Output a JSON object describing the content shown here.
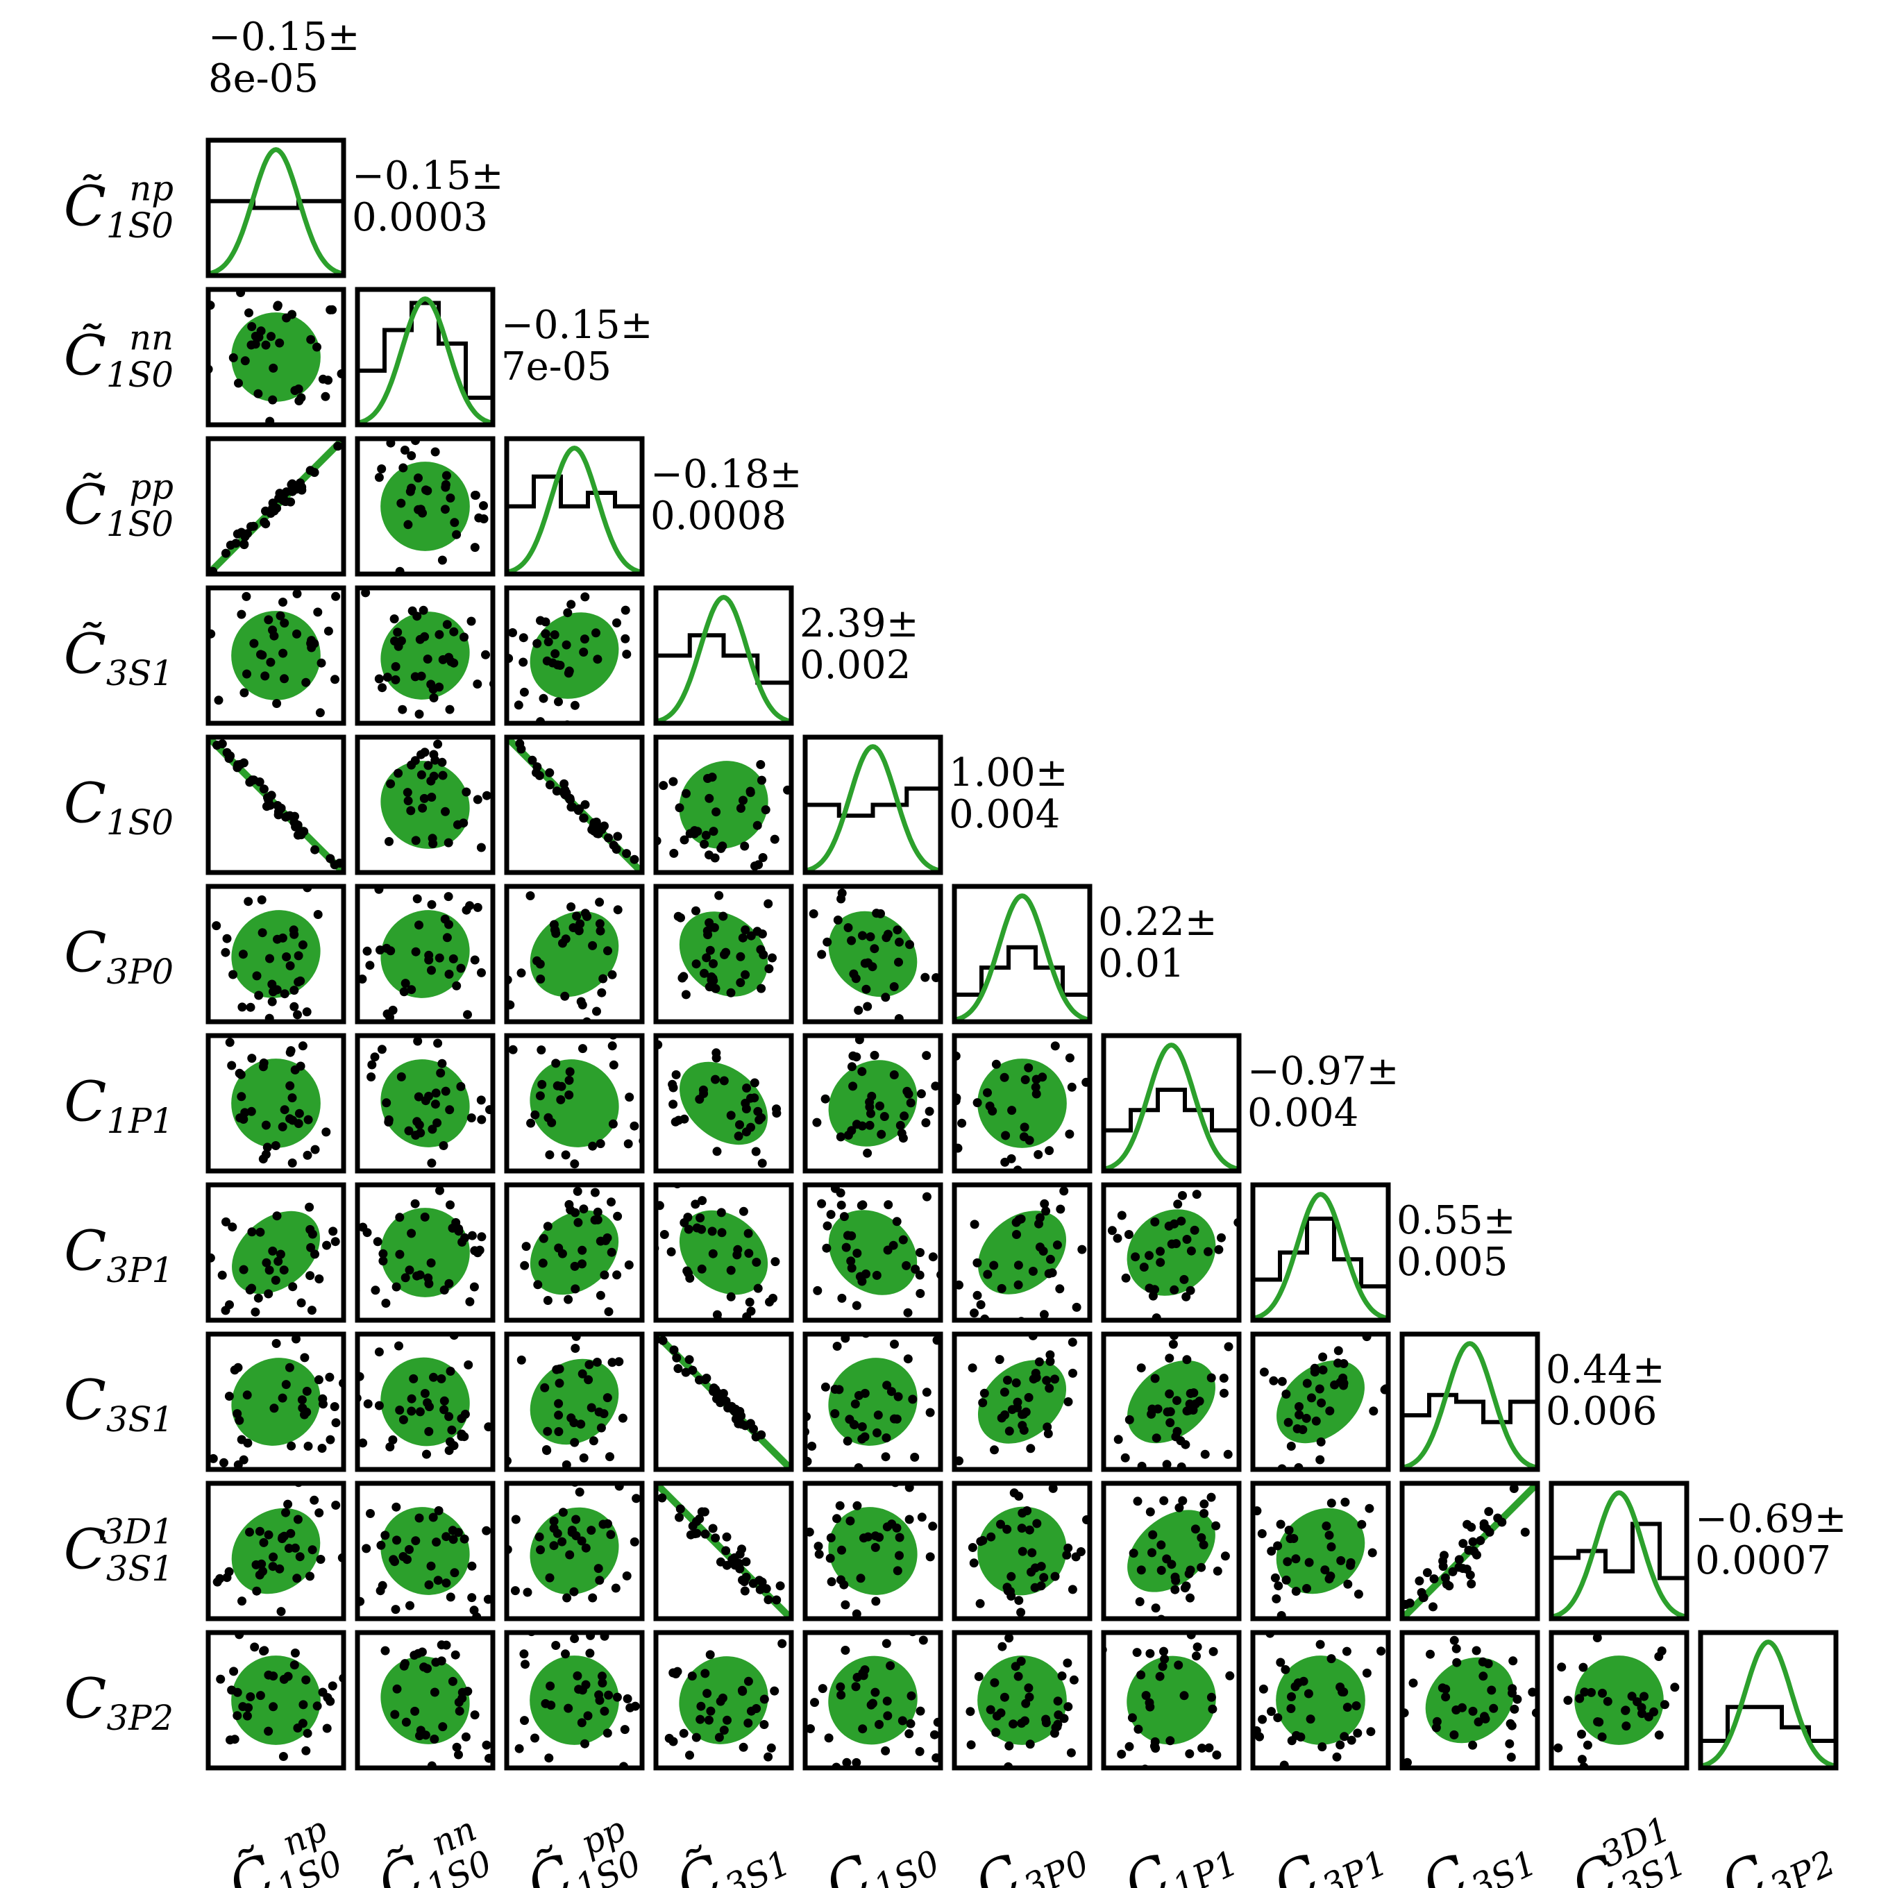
{
  "chart_data": {
    "type": "corner",
    "parameters": [
      {
        "base": "C",
        "tilde": true,
        "sub": "1S0",
        "sup": "np"
      },
      {
        "base": "C",
        "tilde": true,
        "sub": "1S0",
        "sup": "nn"
      },
      {
        "base": "C",
        "tilde": true,
        "sub": "1S0",
        "sup": "pp"
      },
      {
        "base": "C",
        "tilde": true,
        "sub": "3S1",
        "sup": ""
      },
      {
        "base": "C",
        "tilde": false,
        "sub": "1S0",
        "sup": ""
      },
      {
        "base": "C",
        "tilde": false,
        "sub": "3P0",
        "sup": ""
      },
      {
        "base": "C",
        "tilde": false,
        "sub": "1P1",
        "sup": ""
      },
      {
        "base": "C",
        "tilde": false,
        "sub": "3P1",
        "sup": ""
      },
      {
        "base": "C",
        "tilde": false,
        "sub": "3S1",
        "sup": ""
      },
      {
        "base": "C",
        "tilde": false,
        "sub": "3S1",
        "sup": "3D1"
      },
      {
        "base": "C",
        "tilde": false,
        "sub": "3P2",
        "sup": ""
      }
    ],
    "estimates": [
      {
        "mean": "−0.15±",
        "err": "8e-05"
      },
      {
        "mean": "−0.15±",
        "err": "0.0003"
      },
      {
        "mean": "−0.15±",
        "err": "7e-05"
      },
      {
        "mean": "−0.18±",
        "err": "0.0008"
      },
      {
        "mean": "2.39±",
        "err": "0.002"
      },
      {
        "mean": "1.00±",
        "err": "0.004"
      },
      {
        "mean": "0.22±",
        "err": "0.01"
      },
      {
        "mean": "−0.97±",
        "err": "0.004"
      },
      {
        "mean": "0.55±",
        "err": "0.005"
      },
      {
        "mean": "0.44±",
        "err": "0.006"
      },
      {
        "mean": "−0.69±",
        "err": "0.0007"
      }
    ],
    "diag_hist": [
      [
        0.55,
        0.5,
        0.55
      ],
      [
        0.4,
        0.7,
        0.9,
        0.6,
        0.2
      ],
      [
        0.5,
        0.72,
        0.5,
        0.6,
        0.5
      ],
      [
        0.5,
        0.65,
        0.5,
        0.3
      ],
      [
        0.5,
        0.42,
        0.5,
        0.62
      ],
      [
        0.2,
        0.4,
        0.55,
        0.4,
        0.2
      ],
      [
        0.3,
        0.45,
        0.6,
        0.45,
        0.3
      ],
      [
        0.3,
        0.5,
        0.75,
        0.45,
        0.25
      ],
      [
        0.4,
        0.55,
        0.5,
        0.35,
        0.5
      ],
      [
        0.45,
        0.5,
        0.35,
        0.7,
        0.3
      ],
      [
        0.2,
        0.45,
        0.45,
        0.3,
        0.2
      ]
    ],
    "correlations": [
      [],
      [
        0.0
      ],
      [
        0.99,
        0.0
      ],
      [
        0.0,
        0.1,
        0.2
      ],
      [
        -0.99,
        -0.1,
        -0.99,
        0.1
      ],
      [
        0.1,
        0.1,
        0.25,
        -0.3,
        -0.25
      ],
      [
        0.0,
        -0.1,
        -0.1,
        -0.45,
        0.2,
        0.0
      ],
      [
        0.45,
        0.0,
        0.35,
        -0.35,
        -0.3,
        0.4,
        0.2
      ],
      [
        0.1,
        -0.05,
        0.25,
        -0.99,
        0.1,
        0.4,
        0.45,
        0.45
      ],
      [
        0.25,
        -0.1,
        0.15,
        -0.95,
        -0.1,
        0.05,
        0.5,
        0.25,
        0.92
      ],
      [
        0.0,
        -0.1,
        0.0,
        0.1,
        0.05,
        0.0,
        0.05,
        0.0,
        0.25,
        0.0
      ]
    ],
    "colors": {
      "fit": "#2ca02c",
      "samples": "#000000",
      "frame": "#000000"
    },
    "grid": false
  }
}
